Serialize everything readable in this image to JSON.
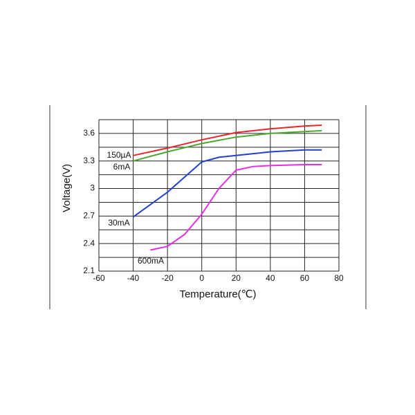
{
  "chart_data": {
    "type": "line",
    "x_label": "Temperature(℃)",
    "y_label": "Voltage(V)",
    "xlim": [
      -60,
      80
    ],
    "xticks": [
      -60,
      -40,
      -20,
      0,
      20,
      40,
      60,
      80
    ],
    "ylim": [
      2.1,
      3.75
    ],
    "yticks": [
      2.1,
      2.4,
      2.7,
      3.0,
      3.3,
      3.6
    ],
    "ygrid": [
      2.1,
      2.25,
      2.4,
      2.55,
      2.7,
      2.85,
      3.0,
      3.15,
      3.3,
      3.45,
      3.6,
      3.75
    ],
    "grid": true,
    "series": [
      {
        "name": "150µA",
        "color": "#e8262a",
        "x": [
          -40,
          -20,
          0,
          20,
          40,
          60,
          70
        ],
        "values": [
          3.36,
          3.44,
          3.53,
          3.61,
          3.65,
          3.68,
          3.69
        ]
      },
      {
        "name": "6mA",
        "color": "#4aa82a",
        "x": [
          -40,
          -20,
          0,
          20,
          40,
          60,
          70
        ],
        "values": [
          3.3,
          3.4,
          3.49,
          3.56,
          3.6,
          3.62,
          3.63
        ]
      },
      {
        "name": "30mA",
        "color": "#1f3fd0",
        "x": [
          -40,
          -20,
          0,
          10,
          20,
          40,
          60,
          70
        ],
        "values": [
          2.69,
          2.96,
          3.29,
          3.34,
          3.36,
          3.4,
          3.42,
          3.42
        ]
      },
      {
        "name": "600mA",
        "color": "#e62ce6",
        "x": [
          -30,
          -20,
          -10,
          0,
          10,
          20,
          30,
          40,
          60,
          70
        ],
        "values": [
          2.33,
          2.37,
          2.5,
          2.72,
          3.0,
          3.2,
          3.24,
          3.25,
          3.26,
          3.26
        ]
      }
    ]
  }
}
